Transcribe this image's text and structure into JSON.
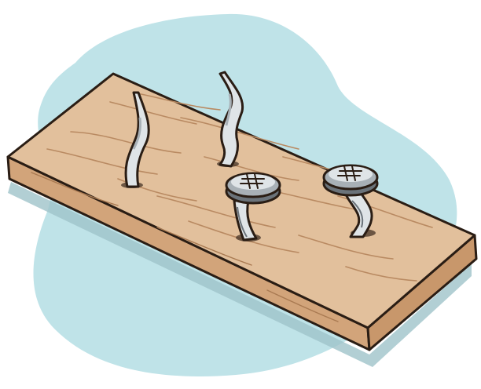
{
  "colors": {
    "background": "#ffffff",
    "blob": "#bfe3e8",
    "board_top": "#e2c09c",
    "board_front": "#d2a47a",
    "board_end": "#c8976b",
    "outline": "#2a1d14",
    "nail_light": "#dfe4e7",
    "nail_mid": "#a8b0b6",
    "nail_dark": "#6b737a",
    "shadow": "#9fc3c9"
  },
  "illustration": {
    "subject": "board-with-bent-nails",
    "bent_nails": 4
  }
}
